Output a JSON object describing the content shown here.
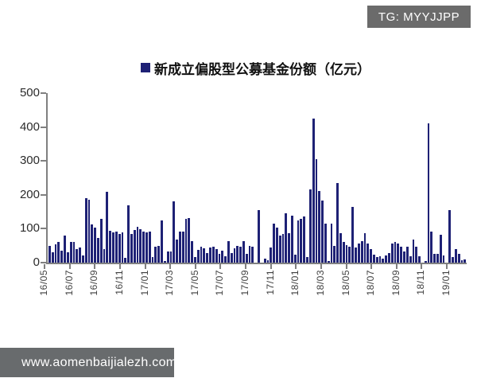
{
  "badge": {
    "label": "TG: MYYJJPP"
  },
  "legend": {
    "label": "新成立偏股型公募基金份额（亿元）"
  },
  "footer": {
    "label": "www.aomenbaijialezh.com"
  },
  "colors": {
    "bar": "#1e2175",
    "badge_bg": "#6b6b6b",
    "footer_bg": "#686b6d",
    "axis": "#808080"
  },
  "chart_data": {
    "type": "bar",
    "title": "新成立偏股型公募基金份额（亿元）",
    "xlabel": "",
    "ylabel": "",
    "ylim": [
      0,
      500
    ],
    "y_ticks": [
      0,
      100,
      200,
      300,
      400,
      500
    ],
    "grid": false,
    "legend_position": "top",
    "x_unit": "week",
    "x_tick_labels": [
      "16/05",
      "16/07",
      "16/09",
      "16/11",
      "17/01",
      "17/03",
      "17/05",
      "17/07",
      "17/09",
      "17/11",
      "18/01",
      "18/03",
      "18/05",
      "18/07",
      "18/09",
      "18/11",
      "19/01"
    ],
    "values": [
      50,
      30,
      55,
      60,
      35,
      80,
      30,
      60,
      60,
      40,
      45,
      20,
      190,
      185,
      112,
      104,
      72,
      128,
      40,
      210,
      95,
      90,
      92,
      85,
      90,
      15,
      170,
      84,
      96,
      106,
      98,
      92,
      90,
      92,
      16,
      48,
      50,
      124,
      4,
      32,
      34,
      180,
      68,
      92,
      92,
      128,
      132,
      64,
      16,
      38,
      48,
      42,
      28,
      44,
      48,
      40,
      26,
      36,
      18,
      64,
      28,
      42,
      50,
      48,
      64,
      26,
      50,
      48,
      0,
      156,
      0,
      12,
      8,
      44,
      114,
      104,
      80,
      84,
      146,
      88,
      138,
      24,
      124,
      130,
      136,
      16,
      216,
      425,
      305,
      212,
      184,
      116,
      4,
      114,
      50,
      235,
      88,
      60,
      52,
      48,
      165,
      44,
      56,
      64,
      88,
      56,
      40,
      24,
      16,
      18,
      12,
      20,
      28,
      56,
      60,
      56,
      48,
      34,
      48,
      18,
      68,
      48,
      18,
      0,
      4,
      412,
      92,
      26,
      26,
      82,
      20,
      0,
      155,
      16,
      40,
      26,
      8,
      10
    ]
  }
}
